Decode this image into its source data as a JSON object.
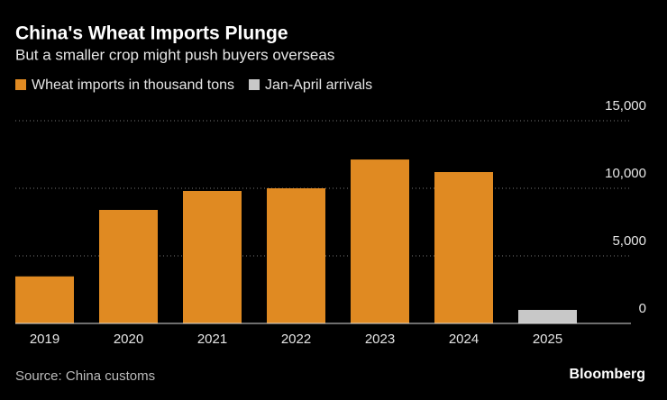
{
  "chart_data": {
    "type": "bar",
    "title": "China's Wheat Imports Plunge",
    "subtitle": "But a smaller crop might push buyers overseas",
    "source": "Source: China customs",
    "brand": "Bloomberg",
    "categories": [
      "2019",
      "2020",
      "2021",
      "2022",
      "2023",
      "2024",
      "2025"
    ],
    "series": [
      {
        "name": "Wheat imports in thousand tons",
        "color": "#e08a22",
        "values": [
          3480,
          8400,
          9800,
          10000,
          12130,
          11200,
          null
        ]
      },
      {
        "name": "Jan-April arrivals",
        "color": "#c8c8c8",
        "values": [
          null,
          null,
          null,
          null,
          null,
          null,
          1000
        ]
      }
    ],
    "ylim": [
      0,
      15000
    ],
    "yticks": [
      0,
      {
        "value": 5000,
        "label": "5,000"
      },
      {
        "value": 10000,
        "label": "10,000"
      },
      {
        "value": 15000,
        "label": "15,000"
      }
    ],
    "grid": true
  }
}
